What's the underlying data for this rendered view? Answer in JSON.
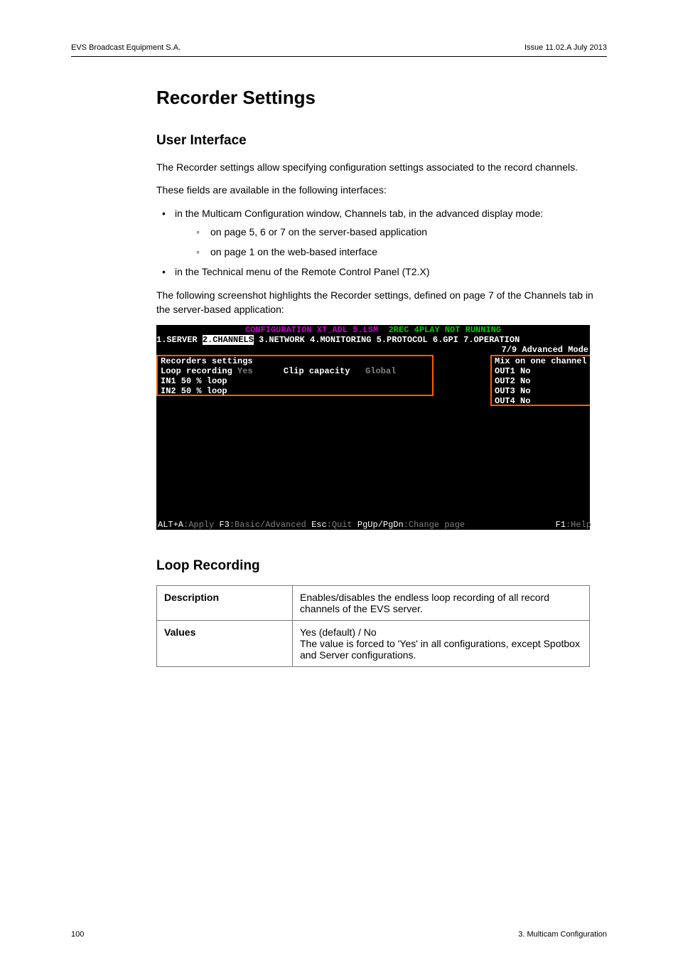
{
  "header": {
    "left": "EVS Broadcast Equipment S.A.",
    "right": "Issue 11.02.A  July 2013"
  },
  "title": "Recorder Settings",
  "section_ui": {
    "heading": "User Interface",
    "p1": "The Recorder settings allow specifying configuration settings associated to the record channels.",
    "p2": "These fields are available in the following interfaces:",
    "bullet1": "in the Multicam Configuration window, Channels tab, in the advanced display mode:",
    "sub1": "on page 5, 6 or 7 on the server-based application",
    "sub2": "on page 1 on the web-based interface",
    "bullet2": "in the Technical menu of the Remote Control Panel (T2.X)",
    "p3": "The following screenshot highlights the Recorder settings, defined on page 7 of the Channels tab in the server-based application:"
  },
  "terminal": {
    "title_left": "CONFIGURATION XT_ADL 5.LSM",
    "title_right": "  2REC 4PLAY NOT RUNNING",
    "tab1": "1.SERVER ",
    "tab2_num": "2.",
    "tab2_text": "CHANNELS",
    "tab_rest": " 3.NETWORK 4.MONITORING 5.PROTOCOL 6.GPI 7.OPERATION",
    "advanced": "7/9 Advanced Mode",
    "left_box": {
      "l1": "Recorders settings",
      "l2a": "Loop recording ",
      "l2b": "Yes",
      "l2c": "      Clip capacity   ",
      "l2d": "Global",
      "l3": "IN1 50 % loop",
      "l4": "IN2 50 % loop"
    },
    "right_box": {
      "r1": "Mix on one channel",
      "r2": "OUT1 No",
      "r3": "OUT2 No",
      "r4": "OUT3 No",
      "r5": "OUT4 No"
    },
    "footer": {
      "f1": "ALT+A",
      "f2": ":Apply ",
      "f3": "F3",
      "f4": ":Basic/Advanced ",
      "f5": "Esc",
      "f6": ":Quit ",
      "f7": "PgUp/PgDn",
      "f8": ":Change page",
      "f9": "F1",
      "f10": ":Help"
    },
    "colors": {
      "bg": "#000000",
      "purple": "#c800c8",
      "white": "#ffffff",
      "green": "#00c800",
      "yellow": "#c8c800",
      "grey": "#808080",
      "highlight": "#ff6000"
    }
  },
  "section_loop": {
    "heading": "Loop Recording",
    "row1_label": "Description",
    "row1_text": "Enables/disables the endless loop recording of all record channels of the EVS server.",
    "row2_label": "Values",
    "row2_text": "Yes (default) / No\nThe value is forced to 'Yes' in all configurations, except Spotbox and Server configurations."
  },
  "footer": {
    "page_num": "100",
    "section": "3. Multicam Configuration"
  }
}
